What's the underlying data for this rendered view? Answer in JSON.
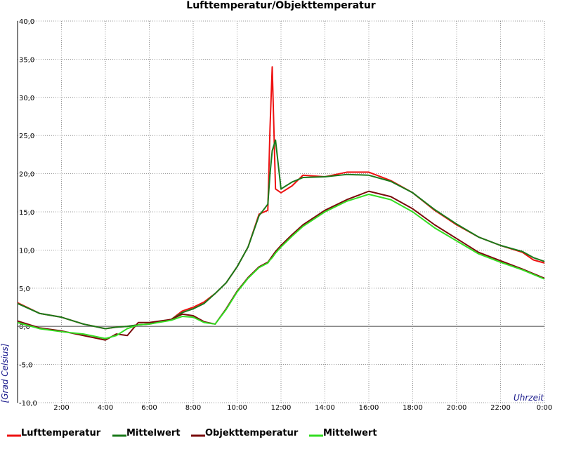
{
  "chart_data": {
    "type": "line",
    "title": "Lufttemperatur/Objekttemperatur",
    "y_label": "[Grad Celsius]",
    "x_label": "Uhrzeit",
    "x": [
      0,
      1,
      2,
      3,
      4,
      4.5,
      5,
      5.5,
      6,
      7,
      7.5,
      8,
      8.5,
      9,
      9.5,
      10,
      10.5,
      11,
      11.4,
      11.5,
      11.6,
      11.75,
      12,
      12.5,
      13,
      14,
      15,
      16,
      17,
      18,
      19,
      20,
      21,
      22,
      23,
      23.5,
      24
    ],
    "series": [
      {
        "name": "Lufttemperatur",
        "color": "#ee1111",
        "values": [
          3.1,
          1.7,
          1.2,
          0.3,
          -0.3,
          -0.1,
          0,
          0.2,
          0.3,
          0.9,
          2.0,
          2.5,
          3.2,
          4.3,
          5.7,
          7.8,
          10.4,
          14.7,
          15.2,
          26,
          34,
          18,
          17.5,
          18.4,
          19.8,
          19.6,
          20.2,
          20.2,
          19.1,
          17.5,
          15.2,
          13.3,
          11.7,
          10.6,
          9.7,
          8.7,
          8.3
        ]
      },
      {
        "name": "Mittelwert",
        "color": "#1a7a1a",
        "values": [
          3.0,
          1.7,
          1.2,
          0.3,
          -0.3,
          -0.1,
          0,
          0.2,
          0.3,
          0.9,
          1.8,
          2.3,
          3.0,
          4.3,
          5.7,
          7.8,
          10.4,
          14.5,
          16,
          20,
          23,
          24.4,
          18,
          18.9,
          19.5,
          19.6,
          19.9,
          19.8,
          19.0,
          17.5,
          15.3,
          13.4,
          11.7,
          10.6,
          9.8,
          9.0,
          8.5
        ]
      },
      {
        "name": "Objekttemperatur",
        "color": "#7a0a0a",
        "values": [
          0.7,
          -0.2,
          -0.6,
          -1.2,
          -1.8,
          -1.0,
          -1.2,
          0.5,
          0.5,
          0.9,
          1.6,
          1.4,
          0.6,
          0.3,
          2.3,
          4.6,
          6.4,
          7.8,
          8.4,
          8.8,
          9.2,
          9.8,
          10.6,
          12.0,
          13.3,
          15.2,
          16.6,
          17.7,
          17.0,
          15.4,
          13.3,
          11.5,
          9.7,
          8.6,
          7.5,
          6.9,
          6.3
        ]
      },
      {
        "name": "Mittelwert",
        "color": "#33dd22",
        "values": [
          0.5,
          -0.3,
          -0.7,
          -1.0,
          -1.6,
          -1.2,
          -0.3,
          0.2,
          0.3,
          0.8,
          1.3,
          1.2,
          0.5,
          0.3,
          2.2,
          4.5,
          6.3,
          7.7,
          8.3,
          8.7,
          9.0,
          9.6,
          10.4,
          11.8,
          13.1,
          15.0,
          16.4,
          17.3,
          16.6,
          15.0,
          12.9,
          11.2,
          9.5,
          8.4,
          7.4,
          6.8,
          6.2
        ]
      }
    ],
    "xlim": [
      0,
      24
    ],
    "xticks": [
      {
        "value": 2,
        "label": "2:00"
      },
      {
        "value": 4,
        "label": "4:00"
      },
      {
        "value": 6,
        "label": "6:00"
      },
      {
        "value": 8,
        "label": "8:00"
      },
      {
        "value": 10,
        "label": "10:00"
      },
      {
        "value": 12,
        "label": "12:00"
      },
      {
        "value": 14,
        "label": "14:00"
      },
      {
        "value": 16,
        "label": "16:00"
      },
      {
        "value": 18,
        "label": "18:00"
      },
      {
        "value": 20,
        "label": "20:00"
      },
      {
        "value": 22,
        "label": "22:00"
      },
      {
        "value": 24,
        "label": "0:00"
      }
    ],
    "ylim": [
      -10,
      40
    ],
    "yticks": [
      {
        "value": -10,
        "label": "-10,0"
      },
      {
        "value": -5,
        "label": "-5,0"
      },
      {
        "value": 0,
        "label": "0,0"
      },
      {
        "value": 5,
        "label": "5,0"
      },
      {
        "value": 10,
        "label": "10,0"
      },
      {
        "value": 15,
        "label": "15,0"
      },
      {
        "value": 20,
        "label": "20,0"
      },
      {
        "value": 25,
        "label": "25,0"
      },
      {
        "value": 30,
        "label": "30,0"
      },
      {
        "value": 35,
        "label": "35,0"
      },
      {
        "value": 40,
        "label": "40,0"
      }
    ],
    "grid": true
  }
}
